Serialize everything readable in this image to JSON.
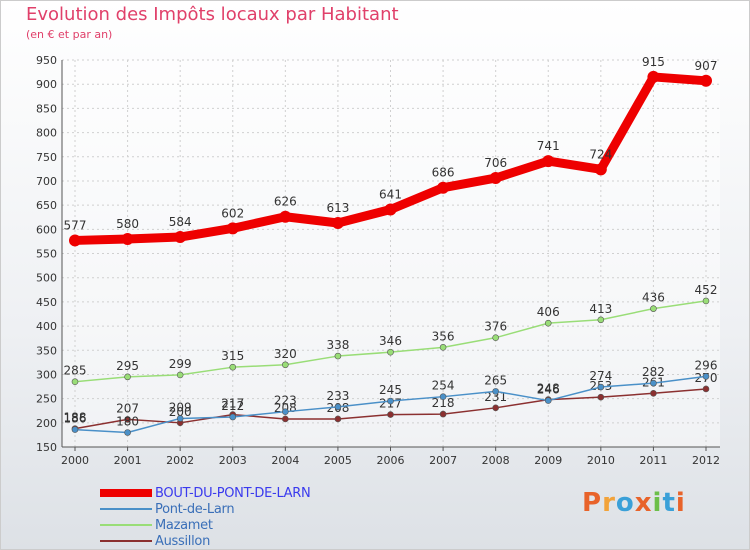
{
  "chart_data": {
    "type": "line",
    "title": "Evolution des Impôts locaux par Habitant",
    "subtitle": "(en € et par an)",
    "categories": [
      "2000",
      "2001",
      "2002",
      "2003",
      "2004",
      "2005",
      "2006",
      "2007",
      "2008",
      "2009",
      "2010",
      "2011",
      "2012"
    ],
    "ylim": [
      150,
      950
    ],
    "yticks": [
      150,
      200,
      250,
      300,
      350,
      400,
      450,
      500,
      550,
      600,
      650,
      700,
      750,
      800,
      850,
      900,
      950
    ],
    "grid": true,
    "legend_position": "bottom-left",
    "series": [
      {
        "name": "BOUT-DU-PONT-DE-LARN",
        "color": "#ee0000",
        "width": 9,
        "values": [
          577,
          580,
          584,
          602,
          626,
          613,
          641,
          686,
          706,
          741,
          724,
          915,
          907
        ]
      },
      {
        "name": "Pont-de-Larn",
        "color": "#4a90c8",
        "width": 1.5,
        "values": [
          186,
          180,
          209,
          212,
          223,
          233,
          245,
          254,
          265,
          246,
          274,
          282,
          296
        ]
      },
      {
        "name": "Mazamet",
        "color": "#99dd77",
        "width": 1.5,
        "values": [
          285,
          295,
          299,
          315,
          320,
          338,
          346,
          356,
          376,
          406,
          413,
          436,
          452
        ]
      },
      {
        "name": "Aussillon",
        "color": "#8b3030",
        "width": 1.5,
        "values": [
          188,
          207,
          200,
          217,
          208,
          208,
          217,
          218,
          231,
          248,
          253,
          261,
          270
        ]
      }
    ]
  },
  "logo": {
    "text": "Proxiti",
    "colors": [
      "#e8632a",
      "#f2a33a",
      "#3aa0d8",
      "#e8632a",
      "#6cbf4a",
      "#3aa0d8",
      "#e8632a"
    ]
  }
}
